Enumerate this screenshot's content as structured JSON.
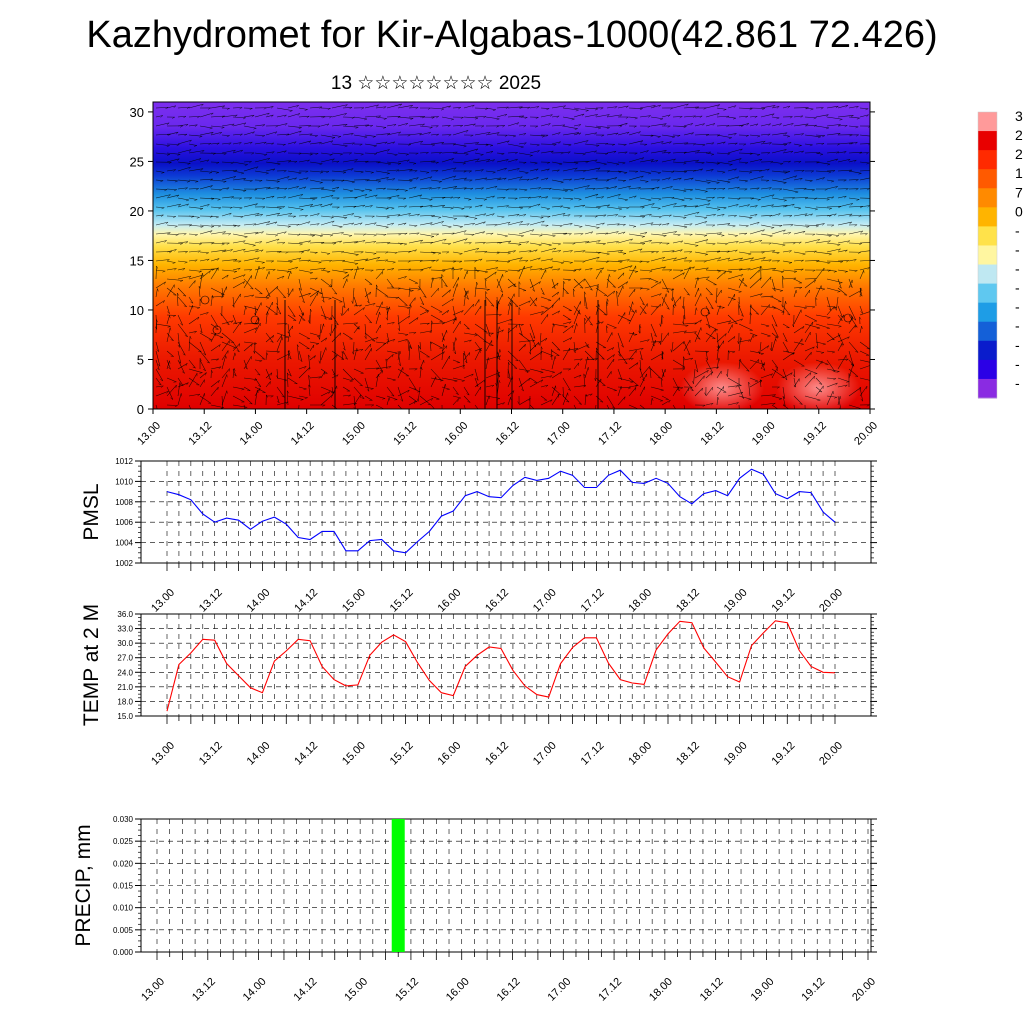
{
  "page": {
    "title": "Kazhydromet for Kir-Algabas-1000(42.861 72.426)",
    "subtitle": "13 ☆☆☆☆☆☆☆☆ 2025"
  },
  "colors": {
    "pmsl_line": "#0000ff",
    "temp_line": "#ff0000",
    "precip_bar": "#00ff00",
    "grid": "#000000"
  },
  "chart_data": [
    {
      "type": "heatmap",
      "description_visible": "wind barbs over shaded field",
      "ylim": [
        0,
        31
      ],
      "yticks": [
        0,
        5,
        10,
        15,
        20,
        25,
        30
      ],
      "xticks": [
        "13.00",
        "13.12",
        "14.00",
        "14.12",
        "15.00",
        "15.12",
        "16.00",
        "16.12",
        "17.00",
        "17.12",
        "18.00",
        "18.12",
        "19.00",
        "19.12",
        "20.00"
      ],
      "colorbar_labels": [
        "3",
        "2",
        "2",
        "1",
        "7",
        "0",
        "-",
        "-",
        "-",
        "-",
        "-",
        "-",
        "-",
        "-",
        "-"
      ],
      "colorbar_colors": [
        "#ff9a9a",
        "#e80000",
        "#ff2a00",
        "#ff5a00",
        "#ff8a00",
        "#ffb400",
        "#ffe24a",
        "#fff6a0",
        "#bfe8f2",
        "#5fc8f0",
        "#1e9de6",
        "#1460d8",
        "#0a1ccc",
        "#2b00e6",
        "#8a2be2"
      ]
    },
    {
      "type": "line",
      "ylabel": "PMSL",
      "ylim": [
        1002,
        1012
      ],
      "yticks": [
        "1002",
        "1004",
        "1006",
        "1008",
        "1010",
        "1012"
      ],
      "xticks": [
        "13.00",
        "13.12",
        "14.00",
        "14.12",
        "15.00",
        "15.12",
        "16.00",
        "16.12",
        "17.00",
        "17.12",
        "18.00",
        "18.12",
        "19.00",
        "19.12",
        "20.00"
      ],
      "series": [
        {
          "values": [
            1009.0,
            1008.7,
            1008.2,
            1006.8,
            1006.0,
            1006.4,
            1006.2,
            1005.3,
            1006.1,
            1006.5,
            1005.8,
            1004.5,
            1004.3,
            1005.1,
            1005.1,
            1003.2,
            1003.2,
            1004.2,
            1004.3,
            1003.2,
            1003.0,
            1004.1,
            1005.1,
            1006.6,
            1007.1,
            1008.6,
            1009.0,
            1008.5,
            1008.4,
            1009.6,
            1010.4,
            1010.1,
            1010.3,
            1011.0,
            1010.6,
            1009.4,
            1009.4,
            1010.6,
            1011.1,
            1009.9,
            1009.8,
            1010.3,
            1009.8,
            1008.5,
            1007.8,
            1008.8,
            1009.1,
            1008.6,
            1010.3,
            1011.2,
            1010.7,
            1008.8,
            1008.3,
            1009.0,
            1008.9,
            1007.0,
            1006.0
          ]
        }
      ]
    },
    {
      "type": "line",
      "ylabel": "TEMP at 2 M",
      "ylim": [
        15,
        36
      ],
      "yticks": [
        "15.0",
        "18.0",
        "21.0",
        "24.0",
        "27.0",
        "30.0",
        "33.0",
        "36.0"
      ],
      "xticks": [
        "13.00",
        "13.12",
        "14.00",
        "14.12",
        "15.00",
        "15.12",
        "16.00",
        "16.12",
        "17.00",
        "17.12",
        "18.00",
        "18.12",
        "19.00",
        "19.12",
        "20.00"
      ],
      "series": [
        {
          "values": [
            16.0,
            25.6,
            28.0,
            30.8,
            30.6,
            25.8,
            23.3,
            20.8,
            19.8,
            26.3,
            28.4,
            30.8,
            30.5,
            25.2,
            22.5,
            21.2,
            21.4,
            27.5,
            30.2,
            31.7,
            30.3,
            26.0,
            22.3,
            19.8,
            19.2,
            25.2,
            27.5,
            29.2,
            28.9,
            24.4,
            21.2,
            19.4,
            18.9,
            25.8,
            29.1,
            31.1,
            31.1,
            25.9,
            22.5,
            21.8,
            21.5,
            28.6,
            31.9,
            34.5,
            34.2,
            29.0,
            26.1,
            23.1,
            22.0,
            29.5,
            32.1,
            34.6,
            34.2,
            28.5,
            25.2,
            24.0,
            23.9
          ]
        }
      ]
    },
    {
      "type": "bar",
      "ylabel": "PRECIP, mm",
      "ylim": [
        0,
        0.03
      ],
      "yticks": [
        "0.000",
        "0.005",
        "0.010",
        "0.015",
        "0.020",
        "0.025",
        "0.030"
      ],
      "xticks": [
        "13.00",
        "13.12",
        "14.00",
        "14.12",
        "15.00",
        "15.12",
        "16.00",
        "16.12",
        "17.00",
        "17.12",
        "18.00",
        "18.12",
        "19.00",
        "19.12",
        "20.00"
      ],
      "bars": [
        {
          "x": "15.09",
          "value": 0.03
        }
      ]
    }
  ]
}
